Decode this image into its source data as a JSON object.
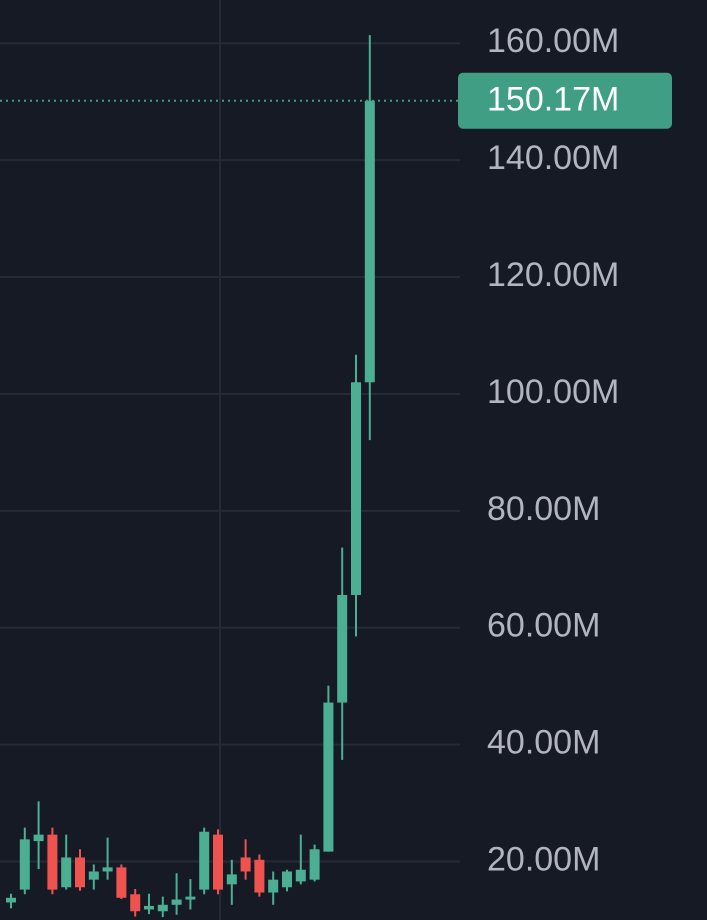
{
  "chart_data": {
    "type": "candlestick",
    "up_color": "#4caf94",
    "down_color": "#ef5350",
    "grid": true,
    "categories": [
      null,
      null,
      null,
      null,
      null,
      null,
      null,
      null,
      null,
      null,
      null,
      null,
      null,
      null,
      null,
      null,
      null,
      null,
      null,
      null,
      null,
      null,
      null,
      null,
      null,
      null,
      null
    ],
    "open": [
      13.0,
      15.2,
      23.5,
      24.6,
      15.6,
      20.7,
      16.9,
      18.3,
      19.0,
      14.4,
      11.8,
      11.5,
      12.6,
      13.5,
      15.2,
      24.6,
      16.1,
      20.7,
      20.3,
      14.7,
      15.6,
      16.6,
      16.9,
      21.7,
      47.2,
      65.6,
      102.0
    ],
    "high": [
      14.5,
      25.8,
      30.3,
      25.8,
      24.6,
      22.1,
      19.5,
      24.1,
      19.5,
      15.3,
      14.5,
      14.0,
      18.0,
      17.0,
      25.8,
      25.5,
      20.3,
      23.8,
      21.2,
      18.3,
      18.6,
      24.6,
      22.9,
      50.1,
      73.7,
      106.7,
      161.4
    ],
    "low": [
      12.0,
      14.4,
      18.7,
      14.4,
      15.2,
      15.0,
      15.2,
      16.9,
      13.6,
      10.6,
      11.0,
      10.5,
      10.9,
      11.8,
      14.4,
      14.4,
      12.6,
      16.9,
      14.0,
      12.6,
      14.9,
      16.1,
      16.6,
      21.7,
      37.4,
      58.5,
      92.1
    ],
    "close": [
      13.8,
      23.8,
      24.6,
      15.2,
      20.7,
      15.6,
      18.3,
      19.0,
      13.8,
      11.5,
      12.4,
      12.6,
      13.5,
      14.0,
      25.1,
      15.2,
      17.8,
      18.3,
      14.7,
      16.9,
      18.3,
      18.6,
      22.1,
      47.2,
      65.6,
      102.0,
      150.17
    ],
    "ylim": [
      10,
      167.4
    ],
    "yticks": [
      {
        "value": 20,
        "label": "20.00M"
      },
      {
        "value": 40,
        "label": "40.00M"
      },
      {
        "value": 60,
        "label": "60.00M"
      },
      {
        "value": 80,
        "label": "80.00M"
      },
      {
        "value": 100,
        "label": "100.00M"
      },
      {
        "value": 120,
        "label": "120.00M"
      },
      {
        "value": 140,
        "label": "140.00M"
      },
      {
        "value": 160,
        "label": "160.00M"
      }
    ],
    "last_price": {
      "value": 150.17,
      "label": "150.17M",
      "color": "#3f9e84"
    }
  }
}
